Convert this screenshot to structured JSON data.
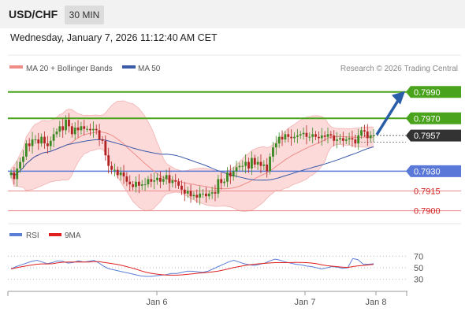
{
  "header": {
    "symbol": "USD/CHF",
    "timeframe": "30 MIN",
    "datetime": "Wednesday, January 7, 2026 11:12:40 AM CET"
  },
  "legend": {
    "bollinger": {
      "label": "MA 20 + Bollinger Bands",
      "color": "#f08c88"
    },
    "ma50": {
      "label": "MA 50",
      "color": "#3b5aa8"
    },
    "credit": "Research © 2026 Trading Central"
  },
  "rsi_legend": {
    "rsi_label": "RSI",
    "rsi_color": "#5b7fd6",
    "ma_label": "9MA",
    "ma_color": "#e02020"
  },
  "colors": {
    "up": "#3a8a23",
    "down": "#b22222",
    "green_level": "#4aa31c",
    "blue_level": "#5a78d8",
    "red_level": "#ea8a8a",
    "current": "#333333",
    "arrow": "#2b5ea8",
    "band_fill": "#fbd3d3"
  },
  "chart_data": {
    "type": "candlestick",
    "price_ylim": [
      0.7895,
      0.8
    ],
    "levels": [
      {
        "value": 0.799,
        "label": "0.7990",
        "kind": "resistance"
      },
      {
        "value": 0.797,
        "label": "0.7970",
        "kind": "resistance"
      },
      {
        "value": 0.7957,
        "label": "0.7957",
        "kind": "current"
      },
      {
        "value": 0.793,
        "label": "0.7930",
        "kind": "pivot"
      },
      {
        "value": 0.7915,
        "label": "0.7915",
        "kind": "support"
      },
      {
        "value": 0.79,
        "label": "0.7900",
        "kind": "support"
      }
    ],
    "x_ticks": [
      "Jan 6",
      "Jan 7",
      "Jan 8"
    ],
    "rsi_ticks": [
      70,
      50,
      30
    ],
    "rsi_ylim": [
      20,
      80
    ],
    "forecast_target": 0.799,
    "closes": [
      0.7929,
      0.7924,
      0.7932,
      0.7937,
      0.7941,
      0.7951,
      0.7949,
      0.7954,
      0.7954,
      0.7951,
      0.7956,
      0.7951,
      0.7949,
      0.7953,
      0.7958,
      0.796,
      0.7964,
      0.7961,
      0.7969,
      0.7964,
      0.7958,
      0.7963,
      0.7961,
      0.7964,
      0.7962,
      0.7962,
      0.7961,
      0.7962,
      0.7961,
      0.7954,
      0.7953,
      0.7942,
      0.7934,
      0.7931,
      0.7931,
      0.7927,
      0.7929,
      0.7926,
      0.7922,
      0.792,
      0.7918,
      0.7922,
      0.7919,
      0.792,
      0.792,
      0.7924,
      0.7922,
      0.7923,
      0.7925,
      0.7922,
      0.7924,
      0.7927,
      0.7921,
      0.7923,
      0.7922,
      0.7919,
      0.7916,
      0.7913,
      0.7915,
      0.7911,
      0.7912,
      0.791,
      0.7913,
      0.7913,
      0.7911,
      0.7913,
      0.7914,
      0.7913,
      0.7924,
      0.7921,
      0.7922,
      0.7929,
      0.7926,
      0.793,
      0.7933,
      0.7934,
      0.7934,
      0.7937,
      0.7932,
      0.794,
      0.7935,
      0.7937,
      0.7934,
      0.7935,
      0.793,
      0.7941,
      0.7948,
      0.7951,
      0.7956,
      0.7954,
      0.7958,
      0.7956,
      0.7955,
      0.7956,
      0.7957,
      0.7958,
      0.7959,
      0.7956,
      0.7956,
      0.7958,
      0.7956,
      0.7955,
      0.7957,
      0.7956,
      0.7958,
      0.7957,
      0.7953,
      0.7954,
      0.7955,
      0.7953,
      0.7954,
      0.7955,
      0.7954,
      0.7951,
      0.7957,
      0.7961,
      0.796,
      0.7955,
      0.7957,
      0.7957
    ],
    "rsi": [
      48,
      52,
      55,
      58,
      61,
      63,
      60,
      57,
      59,
      62,
      61,
      58,
      59,
      62,
      60,
      61,
      63,
      58,
      52,
      48,
      46,
      44,
      42,
      40,
      38,
      36,
      35,
      35,
      36,
      37,
      38,
      40,
      40,
      42,
      44,
      44,
      43,
      42,
      44,
      48,
      52,
      56,
      60,
      63,
      60,
      57,
      55,
      54,
      56,
      58,
      62,
      65,
      63,
      60,
      58,
      56,
      55,
      53,
      52,
      50,
      48,
      50,
      52,
      51,
      49,
      50,
      66,
      64,
      56,
      56,
      57
    ]
  }
}
